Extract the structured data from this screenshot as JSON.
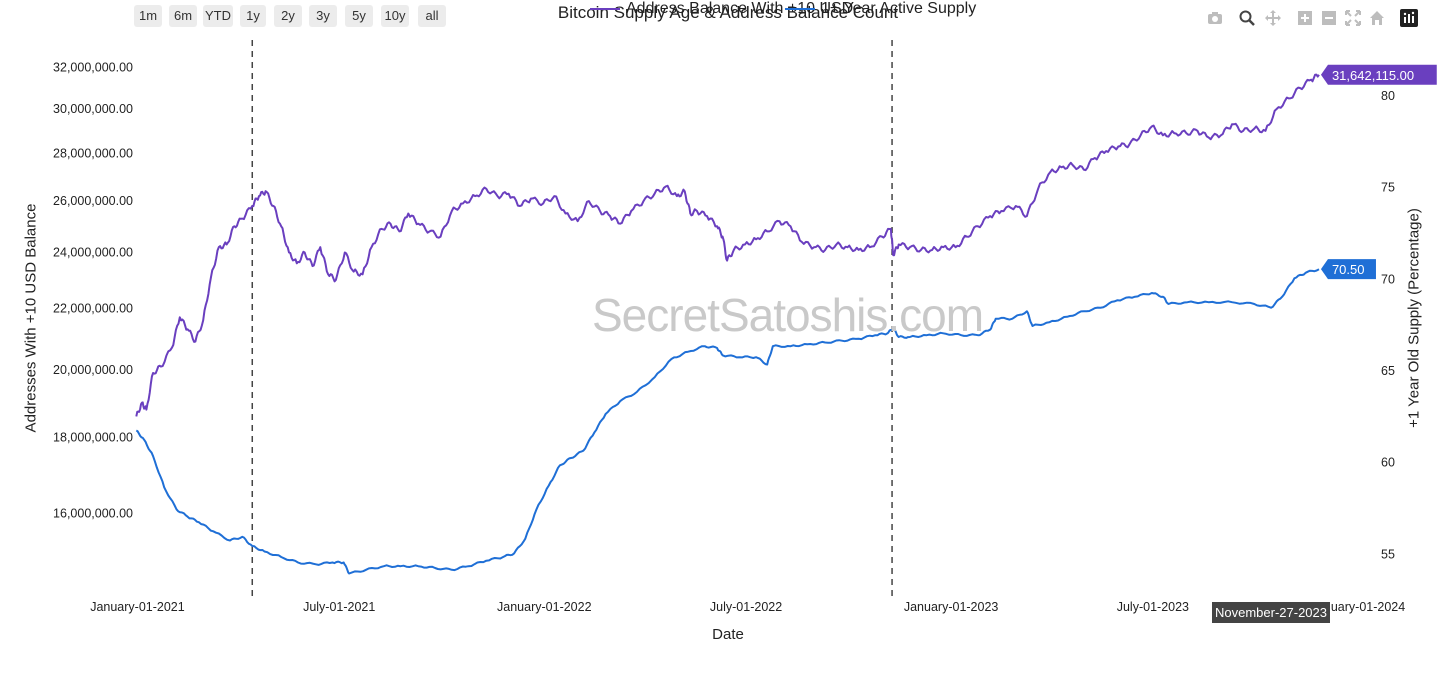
{
  "range_buttons": [
    "1m",
    "6m",
    "YTD",
    "1y",
    "2y",
    "3y",
    "5y",
    "10y",
    "all"
  ],
  "modebar_icons": [
    "camera-icon",
    "zoom-icon",
    "pan-icon",
    "zoom-in-icon",
    "zoom-out-icon",
    "autoscale-icon",
    "home-icon",
    "plotly-logo-icon"
  ],
  "watermark": "SecretSatoshis.com",
  "hover_date": "November-27-2023",
  "chart_data": {
    "type": "line",
    "title": "Bitcoin Supply Age & Address Balance Count",
    "xlabel": "Date",
    "ylabel_left": "Addresses With +10 USD Balance",
    "ylabel_right": "+1 Year Old Supply (Percentage)",
    "x_ticks": [
      "January-01-2021",
      "July-01-2021",
      "January-01-2022",
      "July-01-2022",
      "January-01-2023",
      "July-01-2023",
      "January-01-2024"
    ],
    "x_tick_values": [
      "2021-01-01",
      "2021-07-01",
      "2022-01-01",
      "2022-07-01",
      "2023-01-01",
      "2023-07-01",
      "2024-01-01"
    ],
    "x_range": [
      "2020-12-28",
      "2024-01-10"
    ],
    "y_left_ticks": [
      "16,000,000.00",
      "18,000,000.00",
      "20,000,000.00",
      "22,000,000.00",
      "24,000,000.00",
      "26,000,000.00",
      "28,000,000.00",
      "30,000,000.00",
      "32,000,000.00"
    ],
    "y_left_tick_values": [
      16000000,
      18000000,
      20000000,
      22000000,
      24000000,
      26000000,
      28000000,
      30000000,
      32000000
    ],
    "y_left_scale": "log",
    "y_left_range": [
      14200000,
      33400000
    ],
    "y_right_ticks": [
      "55",
      "60",
      "65",
      "70",
      "75",
      "80"
    ],
    "y_right_tick_values": [
      55,
      60,
      65,
      70,
      75,
      80
    ],
    "y_right_range": [
      53,
      83
    ],
    "vlines": [
      "2021-04-14",
      "2022-11-09"
    ],
    "grid": false,
    "legend_position": "bottom-center",
    "series": [
      {
        "name": "Address Balance With +10 USD",
        "axis": "left",
        "color": "#6a3fbf",
        "last_label": "31,642,115.00",
        "points": [
          [
            "2020-12-31",
            18600000
          ],
          [
            "2021-01-05",
            19000000
          ],
          [
            "2021-01-09",
            18800000
          ],
          [
            "2021-01-15",
            19900000
          ],
          [
            "2021-01-22",
            20100000
          ],
          [
            "2021-02-01",
            20700000
          ],
          [
            "2021-02-08",
            21700000
          ],
          [
            "2021-02-15",
            21300000
          ],
          [
            "2021-02-22",
            20900000
          ],
          [
            "2021-03-01",
            21600000
          ],
          [
            "2021-03-08",
            23100000
          ],
          [
            "2021-03-15",
            24200000
          ],
          [
            "2021-03-22",
            24300000
          ],
          [
            "2021-03-29",
            25000000
          ],
          [
            "2021-04-05",
            25300000
          ],
          [
            "2021-04-14",
            25800000
          ],
          [
            "2021-04-20",
            26200000
          ],
          [
            "2021-04-26",
            26400000
          ],
          [
            "2021-05-03",
            25800000
          ],
          [
            "2021-05-10",
            25000000
          ],
          [
            "2021-05-17",
            24000000
          ],
          [
            "2021-05-24",
            23600000
          ],
          [
            "2021-05-31",
            24000000
          ],
          [
            "2021-06-07",
            23500000
          ],
          [
            "2021-06-14",
            24200000
          ],
          [
            "2021-06-21",
            23200000
          ],
          [
            "2021-06-28",
            23000000
          ],
          [
            "2021-07-06",
            24000000
          ],
          [
            "2021-07-14",
            23300000
          ],
          [
            "2021-07-22",
            23200000
          ],
          [
            "2021-07-30",
            24200000
          ],
          [
            "2021-08-08",
            24900000
          ],
          [
            "2021-08-16",
            25100000
          ],
          [
            "2021-08-24",
            24800000
          ],
          [
            "2021-09-01",
            25500000
          ],
          [
            "2021-09-10",
            25100000
          ],
          [
            "2021-09-20",
            24800000
          ],
          [
            "2021-09-30",
            24600000
          ],
          [
            "2021-10-10",
            25600000
          ],
          [
            "2021-10-20",
            25900000
          ],
          [
            "2021-10-31",
            26200000
          ],
          [
            "2021-11-10",
            26500000
          ],
          [
            "2021-11-20",
            26200000
          ],
          [
            "2021-11-30",
            26300000
          ],
          [
            "2021-12-10",
            25800000
          ],
          [
            "2021-12-20",
            26100000
          ],
          [
            "2021-12-31",
            25900000
          ],
          [
            "2022-01-10",
            26200000
          ],
          [
            "2022-01-20",
            25500000
          ],
          [
            "2022-01-31",
            25200000
          ],
          [
            "2022-02-10",
            26000000
          ],
          [
            "2022-02-20",
            25600000
          ],
          [
            "2022-03-01",
            25400000
          ],
          [
            "2022-03-10",
            25100000
          ],
          [
            "2022-03-20",
            25600000
          ],
          [
            "2022-03-31",
            26000000
          ],
          [
            "2022-04-10",
            26300000
          ],
          [
            "2022-04-20",
            26600000
          ],
          [
            "2022-04-30",
            26200000
          ],
          [
            "2022-05-07",
            26400000
          ],
          [
            "2022-05-12",
            25500000
          ],
          [
            "2022-05-18",
            25600000
          ],
          [
            "2022-05-27",
            25400000
          ],
          [
            "2022-06-05",
            25000000
          ],
          [
            "2022-06-10",
            24600000
          ],
          [
            "2022-06-14",
            23700000
          ],
          [
            "2022-06-20",
            24100000
          ],
          [
            "2022-06-30",
            24300000
          ],
          [
            "2022-07-10",
            24500000
          ],
          [
            "2022-07-20",
            24800000
          ],
          [
            "2022-07-31",
            25200000
          ],
          [
            "2022-08-10",
            25000000
          ],
          [
            "2022-08-20",
            24400000
          ],
          [
            "2022-08-31",
            24200000
          ],
          [
            "2022-09-10",
            24100000
          ],
          [
            "2022-09-20",
            24300000
          ],
          [
            "2022-09-30",
            24200000
          ],
          [
            "2022-10-10",
            24100000
          ],
          [
            "2022-10-20",
            24200000
          ],
          [
            "2022-10-31",
            24600000
          ],
          [
            "2022-11-08",
            24900000
          ],
          [
            "2022-11-10",
            23900000
          ],
          [
            "2022-11-15",
            24300000
          ],
          [
            "2022-11-25",
            24200000
          ],
          [
            "2022-12-05",
            24100000
          ],
          [
            "2022-12-15",
            24100000
          ],
          [
            "2022-12-25",
            24200000
          ],
          [
            "2023-01-05",
            24200000
          ],
          [
            "2023-01-15",
            24600000
          ],
          [
            "2023-01-25",
            25000000
          ],
          [
            "2023-02-05",
            25400000
          ],
          [
            "2023-02-15",
            25600000
          ],
          [
            "2023-02-28",
            25800000
          ],
          [
            "2023-03-10",
            25400000
          ],
          [
            "2023-03-20",
            26500000
          ],
          [
            "2023-03-31",
            27200000
          ],
          [
            "2023-04-10",
            27400000
          ],
          [
            "2023-04-20",
            27500000
          ],
          [
            "2023-04-30",
            27300000
          ],
          [
            "2023-05-10",
            27800000
          ],
          [
            "2023-05-20",
            28100000
          ],
          [
            "2023-05-31",
            28300000
          ],
          [
            "2023-06-10",
            28400000
          ],
          [
            "2023-06-20",
            28800000
          ],
          [
            "2023-06-30",
            29200000
          ],
          [
            "2023-07-10",
            28800000
          ],
          [
            "2023-07-20",
            28900000
          ],
          [
            "2023-07-31",
            28900000
          ],
          [
            "2023-08-10",
            29000000
          ],
          [
            "2023-08-20",
            28700000
          ],
          [
            "2023-08-31",
            28800000
          ],
          [
            "2023-09-10",
            29300000
          ],
          [
            "2023-09-20",
            29000000
          ],
          [
            "2023-09-30",
            29100000
          ],
          [
            "2023-10-10",
            29000000
          ],
          [
            "2023-10-20",
            30000000
          ],
          [
            "2023-10-31",
            30500000
          ],
          [
            "2023-11-10",
            31000000
          ],
          [
            "2023-11-20",
            31400000
          ],
          [
            "2023-11-27",
            31642115
          ]
        ]
      },
      {
        "name": "1+ Year Active Supply",
        "axis": "right",
        "color": "#1f6fd6",
        "last_label": "70.50",
        "points": [
          [
            "2020-12-31",
            61.7
          ],
          [
            "2021-01-07",
            61.2
          ],
          [
            "2021-01-15",
            60.3
          ],
          [
            "2021-01-25",
            58.6
          ],
          [
            "2021-02-05",
            57.4
          ],
          [
            "2021-02-15",
            57.0
          ],
          [
            "2021-02-25",
            56.7
          ],
          [
            "2021-03-10",
            56.2
          ],
          [
            "2021-03-25",
            55.7
          ],
          [
            "2021-04-05",
            55.9
          ],
          [
            "2021-04-14",
            55.4
          ],
          [
            "2021-04-25",
            55.1
          ],
          [
            "2021-05-10",
            54.8
          ],
          [
            "2021-05-25",
            54.5
          ],
          [
            "2021-06-10",
            54.4
          ],
          [
            "2021-06-25",
            54.5
          ],
          [
            "2021-07-05",
            54.5
          ],
          [
            "2021-07-10",
            53.9
          ],
          [
            "2021-07-25",
            54.1
          ],
          [
            "2021-08-10",
            54.3
          ],
          [
            "2021-08-25",
            54.3
          ],
          [
            "2021-09-10",
            54.3
          ],
          [
            "2021-09-25",
            54.2
          ],
          [
            "2021-10-10",
            54.1
          ],
          [
            "2021-10-25",
            54.3
          ],
          [
            "2021-11-10",
            54.6
          ],
          [
            "2021-11-25",
            54.8
          ],
          [
            "2021-12-05",
            55.0
          ],
          [
            "2021-12-15",
            55.8
          ],
          [
            "2021-12-25",
            57.4
          ],
          [
            "2022-01-05",
            58.7
          ],
          [
            "2022-01-15",
            59.8
          ],
          [
            "2022-01-25",
            60.2
          ],
          [
            "2022-02-05",
            60.6
          ],
          [
            "2022-02-15",
            61.6
          ],
          [
            "2022-02-25",
            62.6
          ],
          [
            "2022-03-10",
            63.3
          ],
          [
            "2022-03-25",
            63.8
          ],
          [
            "2022-04-10",
            64.6
          ],
          [
            "2022-04-25",
            65.6
          ],
          [
            "2022-05-10",
            66.0
          ],
          [
            "2022-05-25",
            66.3
          ],
          [
            "2022-06-05",
            66.2
          ],
          [
            "2022-06-10",
            65.8
          ],
          [
            "2022-06-25",
            65.7
          ],
          [
            "2022-07-10",
            65.7
          ],
          [
            "2022-07-20",
            65.3
          ],
          [
            "2022-07-25",
            66.3
          ],
          [
            "2022-08-10",
            66.3
          ],
          [
            "2022-08-25",
            66.4
          ],
          [
            "2022-09-10",
            66.5
          ],
          [
            "2022-09-25",
            66.6
          ],
          [
            "2022-10-10",
            66.7
          ],
          [
            "2022-10-25",
            66.9
          ],
          [
            "2022-11-05",
            67.0
          ],
          [
            "2022-11-10",
            67.3
          ],
          [
            "2022-11-15",
            66.8
          ],
          [
            "2022-11-25",
            66.8
          ],
          [
            "2022-12-10",
            66.9
          ],
          [
            "2022-12-25",
            67.0
          ],
          [
            "2023-01-10",
            66.9
          ],
          [
            "2023-01-25",
            66.9
          ],
          [
            "2023-02-05",
            67.2
          ],
          [
            "2023-02-10",
            67.8
          ],
          [
            "2023-02-25",
            67.8
          ],
          [
            "2023-03-10",
            68.2
          ],
          [
            "2023-03-15",
            67.4
          ],
          [
            "2023-03-30",
            67.6
          ],
          [
            "2023-04-15",
            67.9
          ],
          [
            "2023-04-30",
            68.2
          ],
          [
            "2023-05-15",
            68.4
          ],
          [
            "2023-05-30",
            68.8
          ],
          [
            "2023-06-15",
            69.0
          ],
          [
            "2023-06-30",
            69.2
          ],
          [
            "2023-07-10",
            69.0
          ],
          [
            "2023-07-15",
            68.6
          ],
          [
            "2023-08-01",
            68.7
          ],
          [
            "2023-08-20",
            68.7
          ],
          [
            "2023-09-10",
            68.7
          ],
          [
            "2023-09-30",
            68.6
          ],
          [
            "2023-10-15",
            68.4
          ],
          [
            "2023-10-25",
            69.0
          ],
          [
            "2023-11-05",
            70.0
          ],
          [
            "2023-11-15",
            70.3
          ],
          [
            "2023-11-27",
            70.5
          ]
        ]
      }
    ]
  }
}
